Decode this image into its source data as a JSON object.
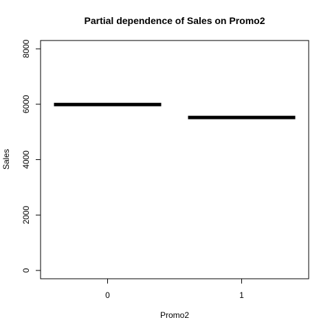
{
  "chart_data": {
    "type": "line",
    "title": "Partial dependence of Sales on Promo2",
    "xlabel": "Promo2",
    "ylabel": "Sales",
    "categories": [
      "0",
      "1"
    ],
    "values": [
      5990,
      5520
    ],
    "ylim": [
      -300,
      8300
    ],
    "yticks": [
      0,
      2000,
      4000,
      6000,
      8000
    ],
    "grid": false,
    "colors": {
      "line": "#000000",
      "axis": "#000000",
      "background": "#ffffff"
    }
  }
}
